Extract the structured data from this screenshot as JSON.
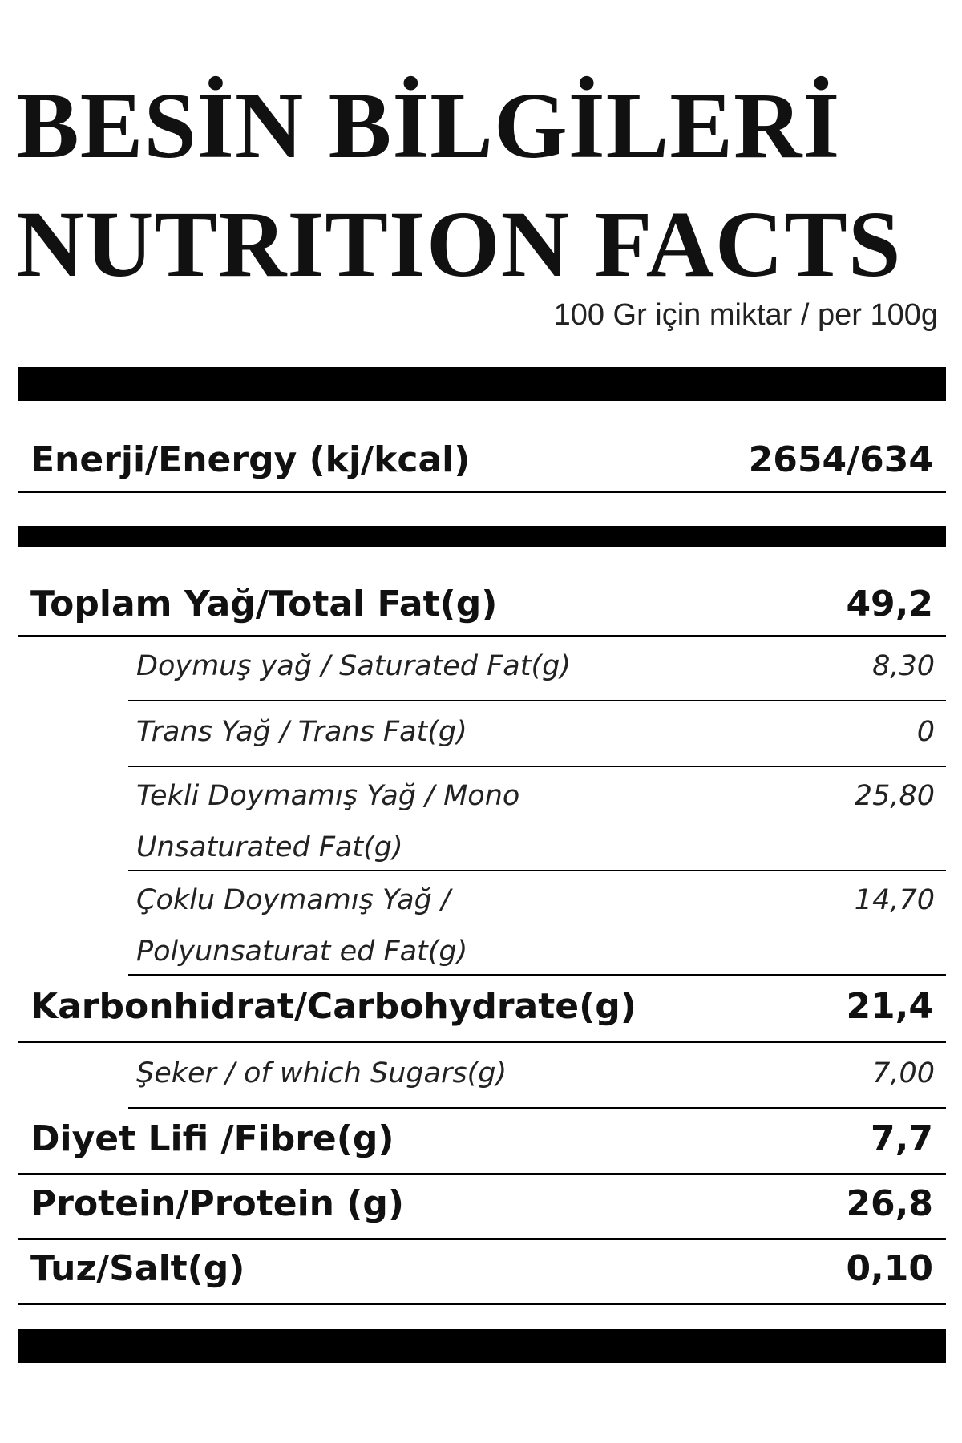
{
  "title_tr": "BESİN BİLGİLERİ",
  "title_en": "NUTRITION FACTS",
  "serving": "100 Gr için miktar / per 100g",
  "rows": {
    "energy": {
      "label": "Enerji/Energy (kj/kcal)",
      "value": "2654/634"
    },
    "total_fat": {
      "label": "Toplam Yağ/Total Fat(g)",
      "value": "49,2"
    },
    "saturated": {
      "label": "Doymuş yağ / Saturated Fat(g)",
      "value": "8,30"
    },
    "trans": {
      "label": "Trans Yağ / Trans Fat(g)",
      "value": "0"
    },
    "mono": {
      "label": "Tekli Doymamış Yağ / Mono Unsaturated Fat(g)",
      "value": "25,80"
    },
    "poly": {
      "label": "Çoklu Doymamış Yağ / Polyunsaturat ed Fat(g)",
      "value": "14,70"
    },
    "carb": {
      "label": "Karbonhidrat/Carbohydrate(g)",
      "value": "21,4"
    },
    "sugars": {
      "label": "Şeker / of which Sugars(g)",
      "value": "7,00"
    },
    "fibre": {
      "label": "Diyet Lifi /Fibre(g)",
      "value": "7,7"
    },
    "protein": {
      "label": "Protein/Protein (g)",
      "value": "26,8"
    },
    "salt": {
      "label": "Tuz/Salt(g)",
      "value": "0,10"
    }
  }
}
